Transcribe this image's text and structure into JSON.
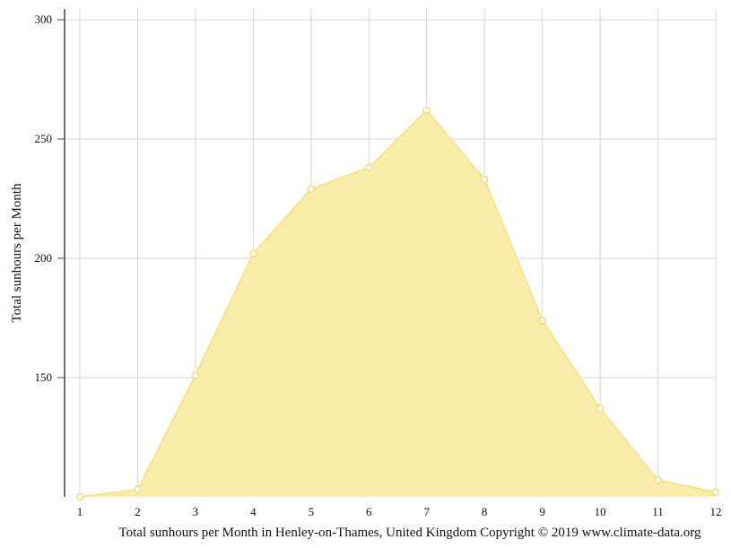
{
  "chart_data": {
    "type": "area",
    "x": [
      1,
      2,
      3,
      4,
      5,
      6,
      7,
      8,
      9,
      10,
      11,
      12
    ],
    "series": [
      {
        "values": [
          100,
          103,
          151,
          202,
          229,
          238,
          262,
          233,
          174,
          137,
          107,
          102
        ]
      }
    ],
    "xticks": [
      "1",
      "2",
      "3",
      "4",
      "5",
      "6",
      "7",
      "8",
      "9",
      "10",
      "11",
      "12"
    ],
    "yticks": [
      "150",
      "200",
      "250",
      "300"
    ],
    "ylim": [
      100,
      300
    ],
    "xlim": [
      1,
      12
    ],
    "xlabel": "Total sunhours per Month in Henley-on-Thames, United Kingdom Copyright © 2019 www.climate-data.org",
    "ylabel": "Total sunhours per Month",
    "grid": true,
    "colors": {
      "fill": "#f9eda9",
      "line": "#f8e38a",
      "marker": "#f0dc7c",
      "grid": "#d6d6d6",
      "axis": "#444444"
    }
  }
}
